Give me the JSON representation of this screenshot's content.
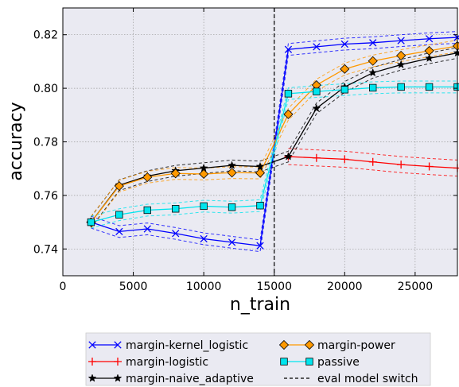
{
  "chart_data": {
    "type": "line",
    "xlabel": "n_train",
    "ylabel": "accuracy",
    "xlim": [
      0,
      28000
    ],
    "ylim": [
      0.73,
      0.83
    ],
    "xticks": [
      0,
      5000,
      10000,
      15000,
      20000,
      25000
    ],
    "yticks": [
      0.74,
      0.76,
      0.78,
      0.8,
      0.82
    ],
    "xtick_labels": [
      "0",
      "5000",
      "10000",
      "15000",
      "20000",
      "25000"
    ],
    "ytick_labels": [
      "0.74",
      "0.76",
      "0.78",
      "0.80",
      "0.82"
    ],
    "grid": true,
    "legend_position": "below plot",
    "vertical_line": {
      "x": 15000,
      "label": "eval model switch",
      "color": "#000000"
    },
    "series": [
      {
        "name": "margin-kernel_logistic",
        "color": "#0000ff",
        "marker": "x",
        "x": [
          2000,
          4000,
          6000,
          8000,
          10000,
          12000,
          14000,
          16000,
          18000,
          20000,
          22000,
          24000,
          26000,
          28000
        ],
        "y": [
          0.75,
          0.7465,
          0.7475,
          0.7458,
          0.7438,
          0.7425,
          0.7412,
          0.8145,
          0.8155,
          0.8165,
          0.817,
          0.8178,
          0.8185,
          0.819
        ],
        "band": 0.0022
      },
      {
        "name": "margin-logistic",
        "color": "#ff0000",
        "marker": "plus",
        "x": [
          16000,
          18000,
          20000,
          22000,
          24000,
          26000,
          28000
        ],
        "y": [
          0.7745,
          0.774,
          0.7735,
          0.7725,
          0.7715,
          0.7708,
          0.7702
        ],
        "band": 0.003
      },
      {
        "name": "margin-naive_adaptive",
        "color": "#000000",
        "marker": "star",
        "x": [
          2000,
          4000,
          6000,
          8000,
          10000,
          12000,
          14000,
          16000,
          18000,
          20000,
          22000,
          24000,
          26000,
          28000
        ],
        "y": [
          0.75,
          0.7638,
          0.7672,
          0.7692,
          0.7702,
          0.7712,
          0.7708,
          0.7745,
          0.7925,
          0.8005,
          0.8058,
          0.8088,
          0.8112,
          0.8132
        ],
        "band": 0.002
      },
      {
        "name": "margin-power",
        "color": "#ff9900",
        "marker": "diamond",
        "x": [
          2000,
          4000,
          6000,
          8000,
          10000,
          12000,
          14000,
          16000,
          18000,
          20000,
          22000,
          24000,
          26000,
          28000
        ],
        "y": [
          0.75,
          0.7635,
          0.7668,
          0.7682,
          0.768,
          0.7685,
          0.7684,
          0.7903,
          0.8012,
          0.8072,
          0.8102,
          0.8122,
          0.814,
          0.8158
        ],
        "band": 0.0022
      },
      {
        "name": "passive",
        "color": "#00e5ee",
        "marker": "square",
        "x": [
          2000,
          4000,
          6000,
          8000,
          10000,
          12000,
          14000,
          16000,
          18000,
          20000,
          22000,
          24000,
          26000,
          28000
        ],
        "y": [
          0.75,
          0.7528,
          0.7545,
          0.755,
          0.756,
          0.7556,
          0.7562,
          0.798,
          0.7988,
          0.7995,
          0.8002,
          0.8005,
          0.8005,
          0.8005
        ],
        "band": 0.0022
      }
    ],
    "legend": [
      {
        "label": "margin-kernel_logistic",
        "color": "#0000ff",
        "marker": "x",
        "dash": false
      },
      {
        "label": "margin-power",
        "color": "#ff9900",
        "marker": "diamond",
        "dash": false
      },
      {
        "label": "margin-logistic",
        "color": "#ff0000",
        "marker": "plus",
        "dash": false
      },
      {
        "label": "passive",
        "color": "#00e5ee",
        "marker": "square",
        "dash": false
      },
      {
        "label": "margin-naive_adaptive",
        "color": "#000000",
        "marker": "star",
        "dash": false
      },
      {
        "label": "eval model switch",
        "color": "#000000",
        "marker": "none",
        "dash": true
      }
    ]
  }
}
